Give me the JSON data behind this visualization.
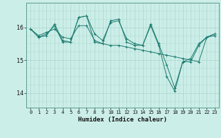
{
  "xlabel": "Humidex (Indice chaleur)",
  "bg_color": "#cceee8",
  "line_color": "#1a7a6e",
  "grid_color_major": "#aad4ce",
  "xlim": [
    -0.5,
    23.5
  ],
  "ylim": [
    13.55,
    16.75
  ],
  "yticks": [
    14,
    15,
    16
  ],
  "xticks": [
    0,
    1,
    2,
    3,
    4,
    5,
    6,
    7,
    8,
    9,
    10,
    11,
    12,
    13,
    14,
    15,
    16,
    17,
    18,
    19,
    20,
    21,
    22,
    23
  ],
  "series": [
    [
      15.95,
      15.75,
      15.85,
      15.95,
      15.7,
      15.65,
      16.05,
      16.05,
      15.6,
      15.5,
      15.45,
      15.45,
      15.4,
      15.35,
      15.3,
      15.25,
      15.2,
      15.15,
      15.1,
      15.05,
      15.0,
      14.95,
      15.7,
      15.75
    ],
    [
      15.95,
      15.7,
      15.75,
      16.1,
      15.6,
      15.55,
      16.3,
      16.35,
      15.8,
      15.6,
      16.15,
      16.2,
      15.65,
      15.5,
      15.45,
      16.1,
      15.5,
      14.85,
      14.15,
      14.95,
      15.05,
      15.5,
      15.7,
      15.8
    ],
    [
      15.95,
      15.7,
      15.8,
      16.05,
      15.55,
      15.55,
      16.3,
      16.35,
      15.55,
      15.5,
      16.2,
      16.25,
      15.55,
      15.45,
      15.45,
      16.05,
      15.45,
      14.5,
      14.05,
      14.95,
      14.95,
      15.45,
      15.7,
      15.8
    ]
  ]
}
